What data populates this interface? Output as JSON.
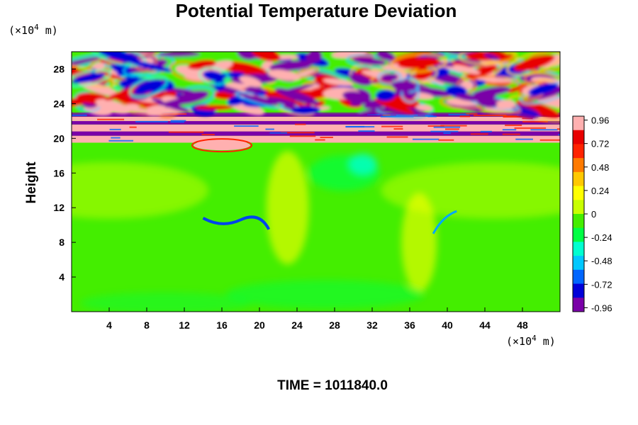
{
  "chart_data": {
    "type": "heatmap",
    "title": "Potential Temperature Deviation",
    "ylabel": "Height",
    "x_unit": {
      "prefix": "(×10",
      "exp": "4",
      "suffix": " m)"
    },
    "y_unit": {
      "prefix": "(×10",
      "exp": "4",
      "suffix": " m)"
    },
    "xlim": [
      0,
      52
    ],
    "ylim": [
      0,
      30
    ],
    "xticks": [
      4,
      8,
      12,
      16,
      20,
      24,
      28,
      32,
      36,
      40,
      44,
      48
    ],
    "yticks": [
      4,
      8,
      12,
      16,
      20,
      24,
      28
    ],
    "colorbar": {
      "min": -1.0,
      "max": 1.0,
      "ticks": [
        0.96,
        0.72,
        0.48,
        0.24,
        0,
        -0.24,
        -0.48,
        -0.72,
        -0.96
      ],
      "colors": [
        "#7a00a8",
        "#0000d8",
        "#0066ff",
        "#00c8ff",
        "#00ffd0",
        "#00ff44",
        "#44ee00",
        "#c8ff00",
        "#ffff00",
        "#ffc800",
        "#ff7a00",
        "#ff2200",
        "#e80000",
        "#ffb0b0"
      ]
    },
    "field": {
      "background": -0.05,
      "description_bands": [
        {
          "y": [
            0,
            19.5
          ],
          "value": -0.05
        },
        {
          "y": [
            19.5,
            23
          ],
          "value": "alternating ±0.96 layers"
        },
        {
          "y": [
            23,
            30
          ],
          "value": "wave pattern ±0.96"
        }
      ]
    },
    "annotation": "TIME = 1011840.0"
  }
}
